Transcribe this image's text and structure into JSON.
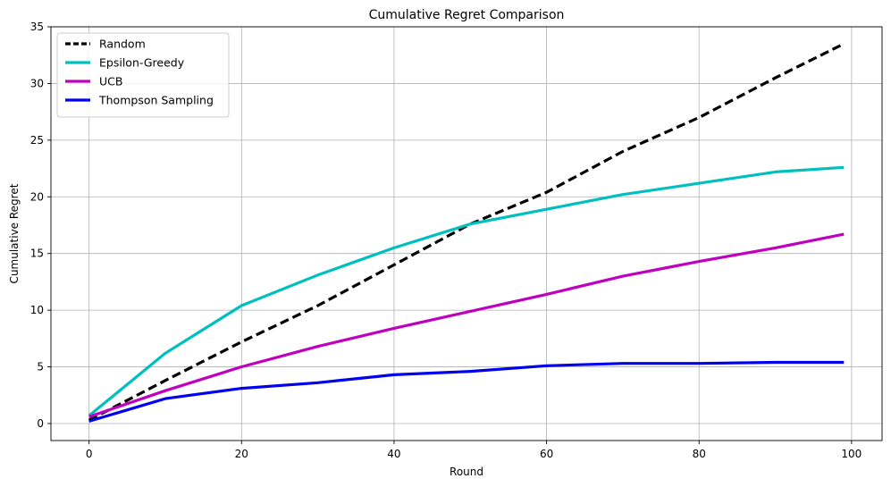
{
  "chart_data": {
    "type": "line",
    "title": "Cumulative Regret Comparison",
    "xlabel": "Round",
    "ylabel": "Cumulative Regret",
    "xlim": [
      -5,
      104
    ],
    "ylim": [
      -1.5,
      35
    ],
    "xticks": [
      0,
      20,
      40,
      60,
      80,
      100
    ],
    "yticks": [
      0,
      5,
      10,
      15,
      20,
      25,
      30,
      35
    ],
    "grid": true,
    "legend_position": "top-left",
    "x": [
      0,
      10,
      20,
      30,
      40,
      50,
      60,
      70,
      80,
      90,
      99
    ],
    "series": [
      {
        "name": "Random",
        "color": "#000000",
        "dash": true,
        "values": [
          0.3,
          3.8,
          7.2,
          10.4,
          14.0,
          17.6,
          20.4,
          24.0,
          27.0,
          30.5,
          33.5
        ]
      },
      {
        "name": "Epsilon-Greedy",
        "color": "#00bfbf",
        "dash": false,
        "values": [
          0.7,
          6.2,
          10.4,
          13.1,
          15.5,
          17.6,
          18.9,
          20.2,
          21.2,
          22.2,
          22.6
        ]
      },
      {
        "name": "UCB",
        "color": "#bf00bf",
        "dash": false,
        "values": [
          0.6,
          2.9,
          5.0,
          6.8,
          8.4,
          9.9,
          11.4,
          13.0,
          14.3,
          15.5,
          16.7
        ]
      },
      {
        "name": "Thompson Sampling",
        "color": "#0000ee",
        "dash": false,
        "values": [
          0.2,
          2.2,
          3.1,
          3.6,
          4.3,
          4.6,
          5.1,
          5.3,
          5.3,
          5.4,
          5.4
        ]
      }
    ]
  }
}
